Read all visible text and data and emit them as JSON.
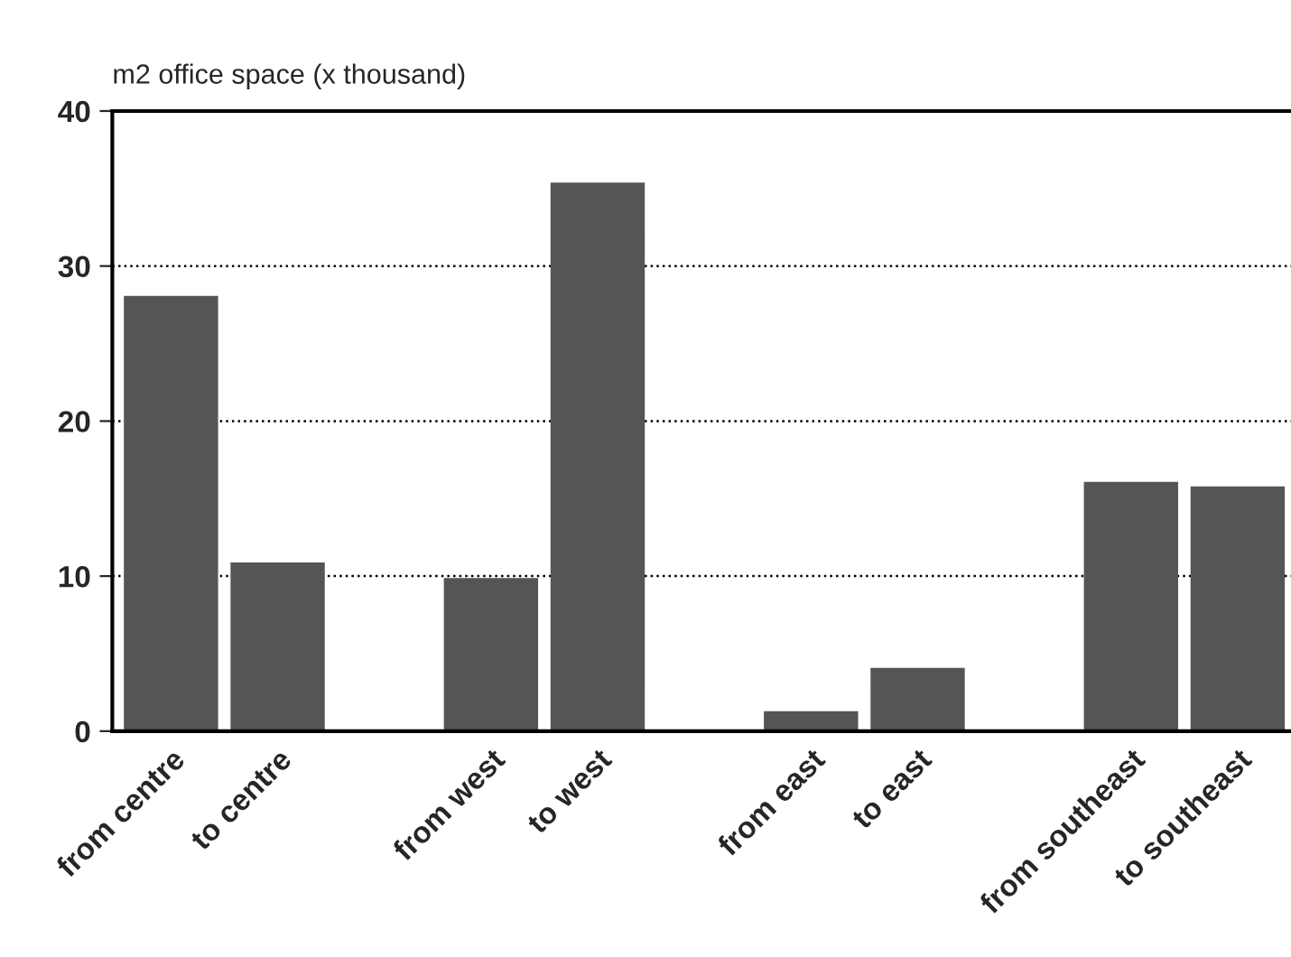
{
  "chart_data": {
    "type": "bar",
    "ylabel": "m2 office space (x thousand)",
    "categories": [
      "from centre",
      "to centre",
      null,
      "from west",
      "to west",
      null,
      "from east",
      "to east",
      null,
      "from southeast",
      "to southeast"
    ],
    "values": [
      28,
      10.8,
      null,
      9.8,
      35.3,
      null,
      1.2,
      4,
      null,
      16,
      15.7
    ],
    "color": "#555555",
    "ylim": [
      0,
      40
    ],
    "yticks": [
      0,
      10,
      20,
      30,
      40
    ],
    "grid": "y",
    "line_style": "dotted"
  }
}
